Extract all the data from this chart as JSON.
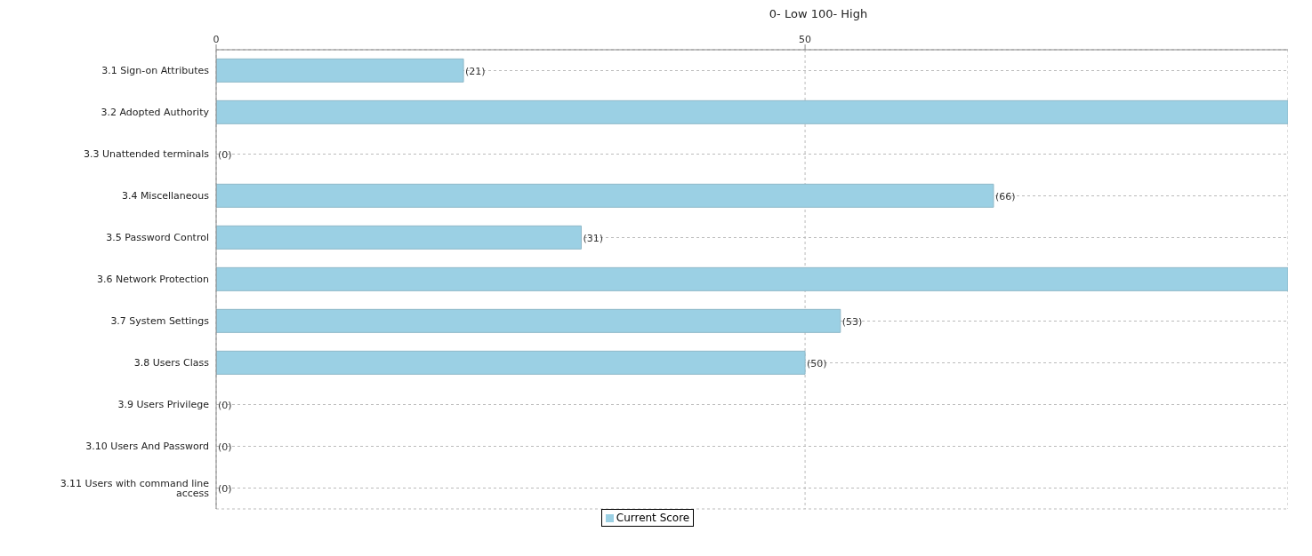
{
  "chart_data": {
    "type": "bar",
    "orientation": "horizontal",
    "xlabel": "0- Low  100- High",
    "categories": [
      "3.1 Sign-on Attributes",
      "3.2 Adopted Authority",
      "3.3 Unattended terminals",
      "3.4 Miscellaneous",
      "3.5 Password Control",
      "3.6 Network Protection",
      "3.7 System Settings",
      "3.8 Users Class",
      "3.9 Users Privilege",
      "3.10 Users And Password",
      "3.11 Users with command line access"
    ],
    "series": [
      {
        "name": "Current Score",
        "color": "#9bd0e4",
        "values": [
          21,
          91,
          0,
          66,
          31,
          91,
          53,
          50,
          0,
          0,
          0
        ],
        "value_labels": [
          "(21)",
          null,
          "(0)",
          "(66)",
          "(31)",
          null,
          "(53)",
          "(50)",
          "(0)",
          "(0)",
          "(0)"
        ]
      }
    ],
    "xlim": [
      0,
      91
    ],
    "xticks": [
      0,
      50
    ],
    "grid": true,
    "legend": "bottom"
  }
}
